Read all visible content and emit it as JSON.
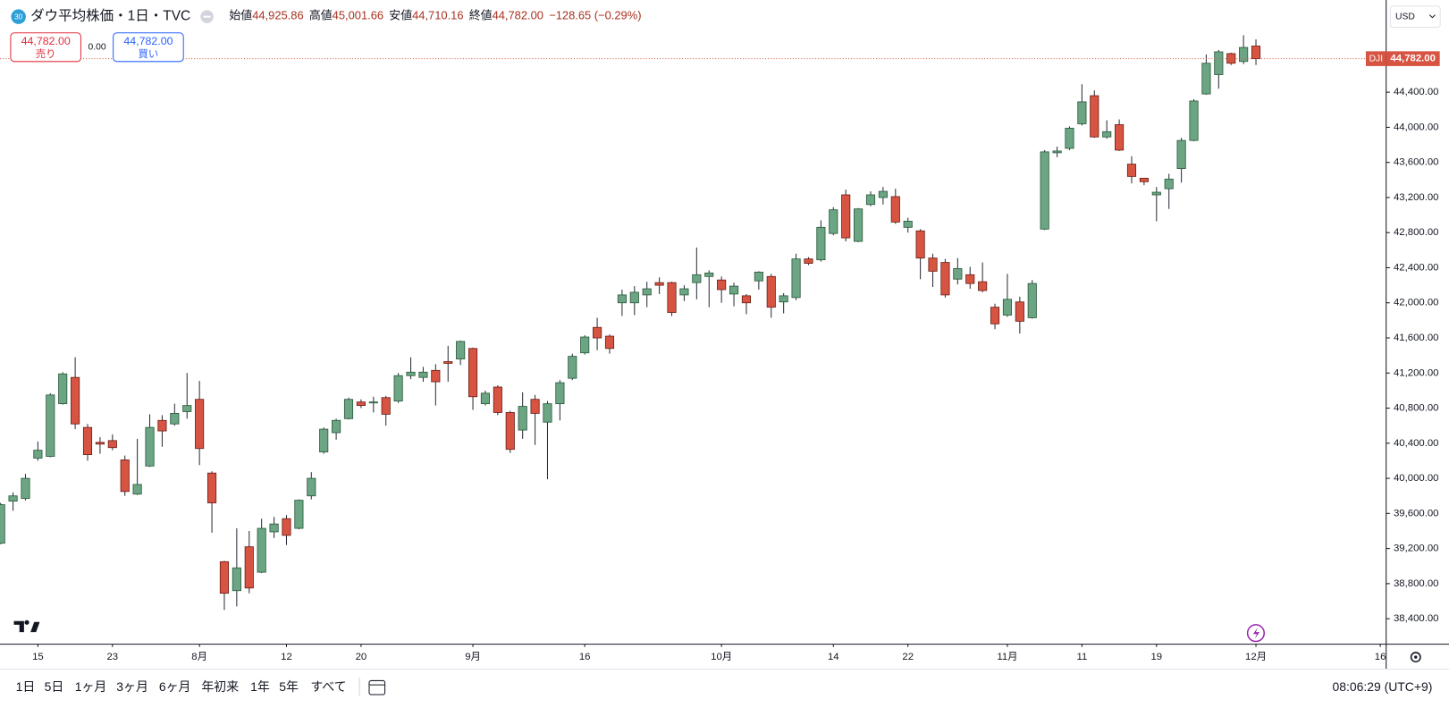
{
  "header": {
    "badge": "30",
    "title": "ダウ平均株価・1日・TVC",
    "open_label": "始値",
    "open": "44,925.86",
    "high_label": "高値",
    "high": "45,001.66",
    "low_label": "安値",
    "low": "44,710.16",
    "close_label": "終値",
    "close": "44,782.00",
    "change": "−128.65 (−0.29%)"
  },
  "trade": {
    "sell_price": "44,782.00",
    "sell_label": "売り",
    "spread": "0.00",
    "buy_price": "44,782.00",
    "buy_label": "買い"
  },
  "axis_panel": {
    "currency": "USD",
    "symbol": "DJI",
    "last_price": "44,782.00"
  },
  "toolbar": {
    "ranges": [
      "1日",
      "5日",
      "1ヶ月",
      "3ヶ月",
      "6ヶ月",
      "年初来",
      "1年",
      "5年",
      "すべて"
    ],
    "clock": "08:06:29 (UTC+9)"
  },
  "chart_data": {
    "type": "candlestick",
    "up_color": "#6ba583",
    "down_color": "#d75442",
    "grid": false,
    "ylim": [
      38110,
      45450
    ],
    "yticks": [
      {
        "value": 38400,
        "label": "38,400.00"
      },
      {
        "value": 38800,
        "label": "38,800.00"
      },
      {
        "value": 39200,
        "label": "39,200.00"
      },
      {
        "value": 39600,
        "label": "39,600.00"
      },
      {
        "value": 40000,
        "label": "40,000.00"
      },
      {
        "value": 40400,
        "label": "40,400.00"
      },
      {
        "value": 40800,
        "label": "40,800.00"
      },
      {
        "value": 41200,
        "label": "41,200.00"
      },
      {
        "value": 41600,
        "label": "41,600.00"
      },
      {
        "value": 42000,
        "label": "42,000.00"
      },
      {
        "value": 42400,
        "label": "42,400.00"
      },
      {
        "value": 42800,
        "label": "42,800.00"
      },
      {
        "value": 43200,
        "label": "43,200.00"
      },
      {
        "value": 43600,
        "label": "43,600.00"
      },
      {
        "value": 44000,
        "label": "44,000.00"
      },
      {
        "value": 44400,
        "label": "44,400.00"
      }
    ],
    "categories": [
      null,
      null,
      null,
      "15",
      null,
      null,
      null,
      null,
      null,
      "23",
      null,
      null,
      null,
      null,
      null,
      null,
      "8月",
      null,
      null,
      null,
      null,
      null,
      null,
      "12",
      null,
      null,
      null,
      null,
      null,
      "20",
      null,
      null,
      null,
      null,
      null,
      null,
      null,
      null,
      "9月",
      null,
      null,
      null,
      null,
      null,
      null,
      null,
      null,
      "16",
      null,
      null,
      null,
      null,
      null,
      null,
      null,
      null,
      null,
      null,
      "10月",
      null,
      null,
      null,
      null,
      null,
      null,
      null,
      null,
      "14",
      null,
      null,
      null,
      null,
      null,
      "22",
      null,
      null,
      null,
      null,
      null,
      null,
      null,
      "11月",
      null,
      null,
      null,
      null,
      null,
      "11",
      null,
      null,
      null,
      null,
      null,
      "19",
      null,
      null,
      null,
      null,
      null,
      null,
      null,
      "12月",
      null,
      null,
      null,
      null,
      null,
      null,
      null,
      null,
      null,
      "16"
    ],
    "open": [
      39260,
      39740,
      39770,
      40230,
      40250,
      40850,
      41150,
      40580,
      40410,
      40430,
      40210,
      39820,
      40140,
      40660,
      40620,
      40760,
      40900,
      40060,
      39050,
      38720,
      39220,
      38930,
      39390,
      39540,
      39430,
      39800,
      40300,
      40520,
      40680,
      40870,
      40860,
      40920,
      40880,
      41170,
      41150,
      41230,
      41330,
      41360,
      41480,
      40850,
      41040,
      40750,
      40550,
      40900,
      40640,
      40850,
      41140,
      41430,
      41720,
      41620,
      42000,
      42000,
      42090,
      42230,
      42230,
      42090,
      42230,
      42300,
      42260,
      42100,
      42080,
      42250,
      42300,
      42010,
      42060,
      42500,
      42490,
      42790,
      43230,
      42700,
      43120,
      43200,
      43210,
      42860,
      42820,
      42510,
      42460,
      42270,
      42320,
      42240,
      41950,
      41860,
      42010,
      41830,
      42840,
      43710,
      43760,
      44040,
      44360,
      43890,
      44030,
      43580,
      43420,
      43230,
      43300,
      43530,
      43850,
      44380,
      44600,
      44840,
      44750,
      44925.86,
      null,
      null,
      null,
      null,
      null,
      null,
      null,
      null,
      null,
      null
    ],
    "high": [
      39720,
      39840,
      40050,
      40420,
      40970,
      41210,
      41380,
      40620,
      40470,
      40500,
      40260,
      40450,
      40730,
      40720,
      40850,
      41200,
      41110,
      40080,
      39060,
      39430,
      39400,
      39540,
      39560,
      39580,
      39760,
      40070,
      40580,
      40680,
      40920,
      40900,
      40930,
      40940,
      41200,
      41380,
      41270,
      41300,
      41510,
      41570,
      41490,
      41000,
      41060,
      40770,
      40980,
      40950,
      40880,
      41120,
      41420,
      41630,
      41830,
      41640,
      42150,
      42190,
      42240,
      42290,
      42240,
      42200,
      42630,
      42370,
      42300,
      42230,
      42100,
      42360,
      42330,
      42110,
      42560,
      42520,
      42940,
      43090,
      43290,
      43080,
      43270,
      43320,
      43300,
      42970,
      42840,
      42560,
      42500,
      42510,
      42410,
      42460,
      41990,
      42330,
      42070,
      42260,
      43740,
      43780,
      44010,
      44490,
      44420,
      44080,
      44090,
      43670,
      43420,
      43320,
      43470,
      43880,
      44320,
      44830,
      44880,
      44850,
      45050,
      45001.66,
      null,
      null,
      null,
      null,
      null,
      null,
      null,
      null,
      null,
      null
    ],
    "low": [
      39250,
      39630,
      39750,
      40200,
      40240,
      40840,
      40560,
      40200,
      40280,
      40320,
      39800,
      39810,
      40130,
      40360,
      40600,
      40680,
      40150,
      39380,
      38500,
      38540,
      38690,
      38920,
      39320,
      39240,
      39420,
      39760,
      40280,
      40440,
      40670,
      40800,
      40750,
      40600,
      40860,
      41130,
      41100,
      40830,
      41100,
      41290,
      40780,
      40830,
      40720,
      40290,
      40450,
      40380,
      39990,
      40660,
      41120,
      41410,
      41460,
      41420,
      41850,
      41860,
      41950,
      42100,
      41850,
      42020,
      42040,
      41950,
      42000,
      41960,
      41870,
      42150,
      41830,
      41880,
      42030,
      42430,
      42470,
      42770,
      42700,
      42690,
      43100,
      43120,
      42900,
      42800,
      42270,
      42180,
      42060,
      42210,
      42160,
      42120,
      41700,
      41840,
      41650,
      41820,
      42830,
      43660,
      43740,
      44020,
      43880,
      43870,
      43730,
      43360,
      43340,
      42930,
      43070,
      43370,
      43840,
      44370,
      44440,
      44710,
      44720,
      44710.16,
      null,
      null,
      null,
      null,
      null,
      null,
      null,
      null,
      null,
      null
    ],
    "close": [
      39700,
      39800,
      40000,
      40320,
      40950,
      41190,
      40620,
      40270,
      40390,
      40350,
      39850,
      39930,
      40580,
      40540,
      40740,
      40830,
      40340,
      39720,
      38690,
      38980,
      38750,
      39430,
      39480,
      39350,
      39750,
      40000,
      40560,
      40660,
      40900,
      40830,
      40870,
      40730,
      41170,
      41210,
      41210,
      41100,
      41310,
      41560,
      40930,
      40970,
      40750,
      40330,
      40820,
      40740,
      40850,
      41090,
      41390,
      41610,
      41600,
      41480,
      42090,
      42120,
      42160,
      42200,
      41890,
      42160,
      42320,
      42340,
      42150,
      42190,
      42000,
      42350,
      41950,
      42080,
      42500,
      42450,
      42860,
      43060,
      42740,
      43070,
      43230,
      43270,
      42920,
      42930,
      42510,
      42360,
      42090,
      42390,
      42220,
      42140,
      41760,
      42040,
      41790,
      42220,
      43720,
      43730,
      43990,
      44290,
      43890,
      43950,
      43740,
      43440,
      43380,
      43260,
      43410,
      43850,
      44300,
      44730,
      44860,
      44730,
      44910,
      44782,
      null,
      null,
      null,
      null,
      null,
      null,
      null,
      null,
      null,
      null
    ]
  }
}
